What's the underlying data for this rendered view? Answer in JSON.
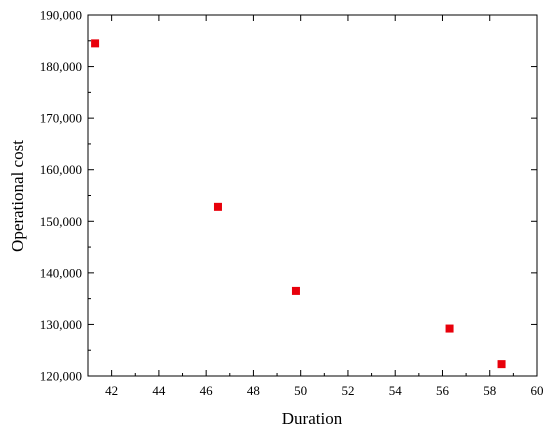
{
  "chart_data": {
    "type": "scatter",
    "title": "",
    "xlabel": "Duration",
    "ylabel": "Operational cost",
    "xlim": [
      41,
      60
    ],
    "ylim": [
      120000,
      190000
    ],
    "x_ticks": [
      42,
      44,
      46,
      48,
      50,
      52,
      54,
      56,
      58,
      60
    ],
    "y_ticks": [
      120000,
      130000,
      140000,
      150000,
      160000,
      170000,
      180000,
      190000
    ],
    "y_tick_labels": [
      "120,000",
      "130,000",
      "140,000",
      "150,000",
      "160,000",
      "170,000",
      "180,000",
      "190,000"
    ],
    "grid": false,
    "legend": "none",
    "marker": "square",
    "marker_color": "#e8000b",
    "points": [
      {
        "x": 41.3,
        "y": 184500
      },
      {
        "x": 46.5,
        "y": 152800
      },
      {
        "x": 49.8,
        "y": 136500
      },
      {
        "x": 56.3,
        "y": 129200
      },
      {
        "x": 58.5,
        "y": 122300
      }
    ]
  }
}
